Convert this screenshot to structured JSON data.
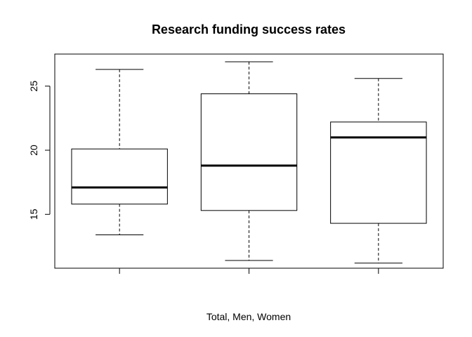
{
  "chart_data": {
    "type": "boxplot",
    "title": "Research funding success rates",
    "xlabel": "Total, Men, Women",
    "ylabel": "",
    "ylim": [
      10.8,
      27.5
    ],
    "yticks": [
      15,
      20,
      25
    ],
    "grid": false,
    "categories": [
      "",
      "",
      ""
    ],
    "boxes": [
      {
        "min": 13.4,
        "q1": 15.8,
        "median": 17.1,
        "q3": 20.1,
        "max": 26.3
      },
      {
        "min": 11.4,
        "q1": 15.3,
        "median": 18.8,
        "q3": 24.4,
        "max": 26.9
      },
      {
        "min": 11.2,
        "q1": 14.3,
        "median": 21.0,
        "q3": 22.2,
        "max": 25.6
      }
    ]
  }
}
